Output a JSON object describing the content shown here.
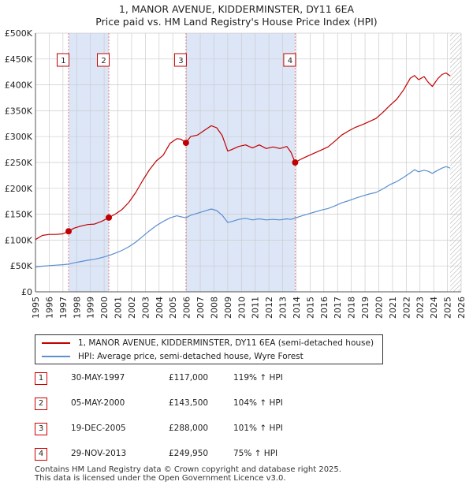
{
  "title_line1": "1, MANOR AVENUE, KIDDERMINSTER, DY11 6EA",
  "title_line2": "Price paid vs. HM Land Registry's House Price Index (HPI)",
  "colors": {
    "property": "#c00000",
    "hpi": "#5b8fcf",
    "shade": "#dce6f7",
    "vline": "#e08080",
    "grid": "#cccccc"
  },
  "chart_data": {
    "type": "line",
    "xlim": [
      1995,
      2026
    ],
    "ylim": [
      0,
      500000
    ],
    "y_ticks": [
      0,
      50000,
      100000,
      150000,
      200000,
      250000,
      300000,
      350000,
      400000,
      450000,
      500000
    ],
    "y_tick_labels": [
      "£0",
      "£50K",
      "£100K",
      "£150K",
      "£200K",
      "£250K",
      "£300K",
      "£350K",
      "£400K",
      "£450K",
      "£500K"
    ],
    "x_ticks": [
      "1995",
      "1996",
      "1997",
      "1998",
      "1999",
      "2000",
      "2001",
      "2002",
      "2003",
      "2004",
      "2005",
      "2006",
      "2007",
      "2008",
      "2009",
      "2010",
      "2011",
      "2012",
      "2013",
      "2014",
      "2015",
      "2016",
      "2017",
      "2018",
      "2019",
      "2020",
      "2021",
      "2022",
      "2023",
      "2024",
      "2025",
      "2026"
    ],
    "series": [
      {
        "name": "1, MANOR AVENUE, KIDDERMINSTER, DY11 6EA (semi-detached house)",
        "x": [
          1995.0,
          1995.5,
          1996.0,
          1996.5,
          1997.0,
          1997.41,
          1997.8,
          1998.3,
          1998.8,
          1999.3,
          1999.8,
          2000.34,
          2000.8,
          2001.3,
          2001.8,
          2002.3,
          2002.8,
          2003.3,
          2003.8,
          2004.3,
          2004.8,
          2005.3,
          2005.6,
          2005.96,
          2006.3,
          2006.8,
          2007.3,
          2007.8,
          2008.2,
          2008.6,
          2009.0,
          2009.3,
          2009.8,
          2010.3,
          2010.8,
          2011.3,
          2011.8,
          2012.3,
          2012.8,
          2013.3,
          2013.6,
          2013.91,
          2014.3,
          2014.8,
          2015.3,
          2015.8,
          2016.3,
          2016.8,
          2017.3,
          2017.8,
          2018.3,
          2018.8,
          2019.3,
          2019.8,
          2020.3,
          2020.8,
          2021.3,
          2021.8,
          2022.3,
          2022.6,
          2022.9,
          2023.3,
          2023.6,
          2023.9,
          2024.3,
          2024.6,
          2024.9,
          2025.2
        ],
        "values": [
          101000,
          109000,
          111000,
          111000,
          112000,
          117000,
          123000,
          127000,
          130000,
          131000,
          136000,
          143500,
          150000,
          159000,
          173000,
          192000,
          215000,
          236000,
          253000,
          264000,
          287000,
          296000,
          295000,
          288000,
          300000,
          303000,
          312000,
          321000,
          317000,
          302000,
          272000,
          275000,
          281000,
          284000,
          278000,
          284000,
          277000,
          280000,
          277000,
          281000,
          270000,
          249950,
          256000,
          262000,
          268000,
          274000,
          280000,
          291000,
          303000,
          311000,
          318000,
          323000,
          329000,
          335000,
          347000,
          360000,
          372000,
          390000,
          413000,
          418000,
          410000,
          416000,
          405000,
          397000,
          412000,
          420000,
          423000,
          417000
        ]
      },
      {
        "name": "HPI: Average price, semi-detached house, Wyre Forest",
        "x": [
          1995.0,
          1995.5,
          1996.0,
          1996.5,
          1997.0,
          1997.41,
          1997.8,
          1998.3,
          1998.8,
          1999.3,
          1999.8,
          2000.34,
          2000.8,
          2001.3,
          2001.8,
          2002.3,
          2002.8,
          2003.3,
          2003.8,
          2004.3,
          2004.8,
          2005.3,
          2005.6,
          2005.96,
          2006.3,
          2006.8,
          2007.3,
          2007.8,
          2008.2,
          2008.6,
          2009.0,
          2009.3,
          2009.8,
          2010.3,
          2010.8,
          2011.3,
          2011.8,
          2012.3,
          2012.8,
          2013.3,
          2013.6,
          2013.91,
          2014.3,
          2014.8,
          2015.3,
          2015.8,
          2016.3,
          2016.8,
          2017.3,
          2017.8,
          2018.3,
          2018.8,
          2019.3,
          2019.8,
          2020.3,
          2020.8,
          2021.3,
          2021.8,
          2022.3,
          2022.6,
          2022.9,
          2023.3,
          2023.6,
          2023.9,
          2024.3,
          2024.6,
          2024.9,
          2025.2
        ],
        "values": [
          48000,
          49500,
          50500,
          51500,
          52500,
          53500,
          56000,
          58500,
          61000,
          63000,
          66000,
          70000,
          74500,
          80000,
          87000,
          96000,
          107000,
          118000,
          128000,
          136000,
          143000,
          147000,
          145000,
          143000,
          148000,
          152000,
          156000,
          160000,
          157000,
          148000,
          134000,
          136000,
          140000,
          142000,
          139000,
          141000,
          139000,
          140000,
          139000,
          141000,
          140000,
          142500,
          146000,
          150000,
          154000,
          158000,
          161000,
          166000,
          172000,
          176000,
          181000,
          185000,
          189000,
          192000,
          199000,
          207000,
          213000,
          221000,
          230000,
          236000,
          232000,
          235000,
          233000,
          229000,
          235000,
          239000,
          242000,
          239000
        ]
      }
    ],
    "sales": [
      {
        "id": "1",
        "x": 1997.41,
        "price": 117000
      },
      {
        "id": "2",
        "x": 2000.34,
        "price": 143500
      },
      {
        "id": "3",
        "x": 2005.96,
        "price": 288000
      },
      {
        "id": "4",
        "x": 2013.91,
        "price": 249950
      }
    ],
    "shaded_periods": [
      [
        1997.41,
        2000.34
      ],
      [
        2005.96,
        2013.91
      ]
    ],
    "hatched_from": 2025.2
  },
  "legend": {
    "property": "1, MANOR AVENUE, KIDDERMINSTER, DY11 6EA (semi-detached house)",
    "hpi": "HPI: Average price, semi-detached house, Wyre Forest"
  },
  "sales_table": [
    {
      "num": "1",
      "date": "30-MAY-1997",
      "price": "£117,000",
      "hpi": "119% ↑ HPI"
    },
    {
      "num": "2",
      "date": "05-MAY-2000",
      "price": "£143,500",
      "hpi": "104% ↑ HPI"
    },
    {
      "num": "3",
      "date": "19-DEC-2005",
      "price": "£288,000",
      "hpi": "101% ↑ HPI"
    },
    {
      "num": "4",
      "date": "29-NOV-2013",
      "price": "£249,950",
      "hpi": "75% ↑ HPI"
    }
  ],
  "footer_line1": "Contains HM Land Registry data © Crown copyright and database right 2025.",
  "footer_line2": "This data is licensed under the Open Government Licence v3.0."
}
